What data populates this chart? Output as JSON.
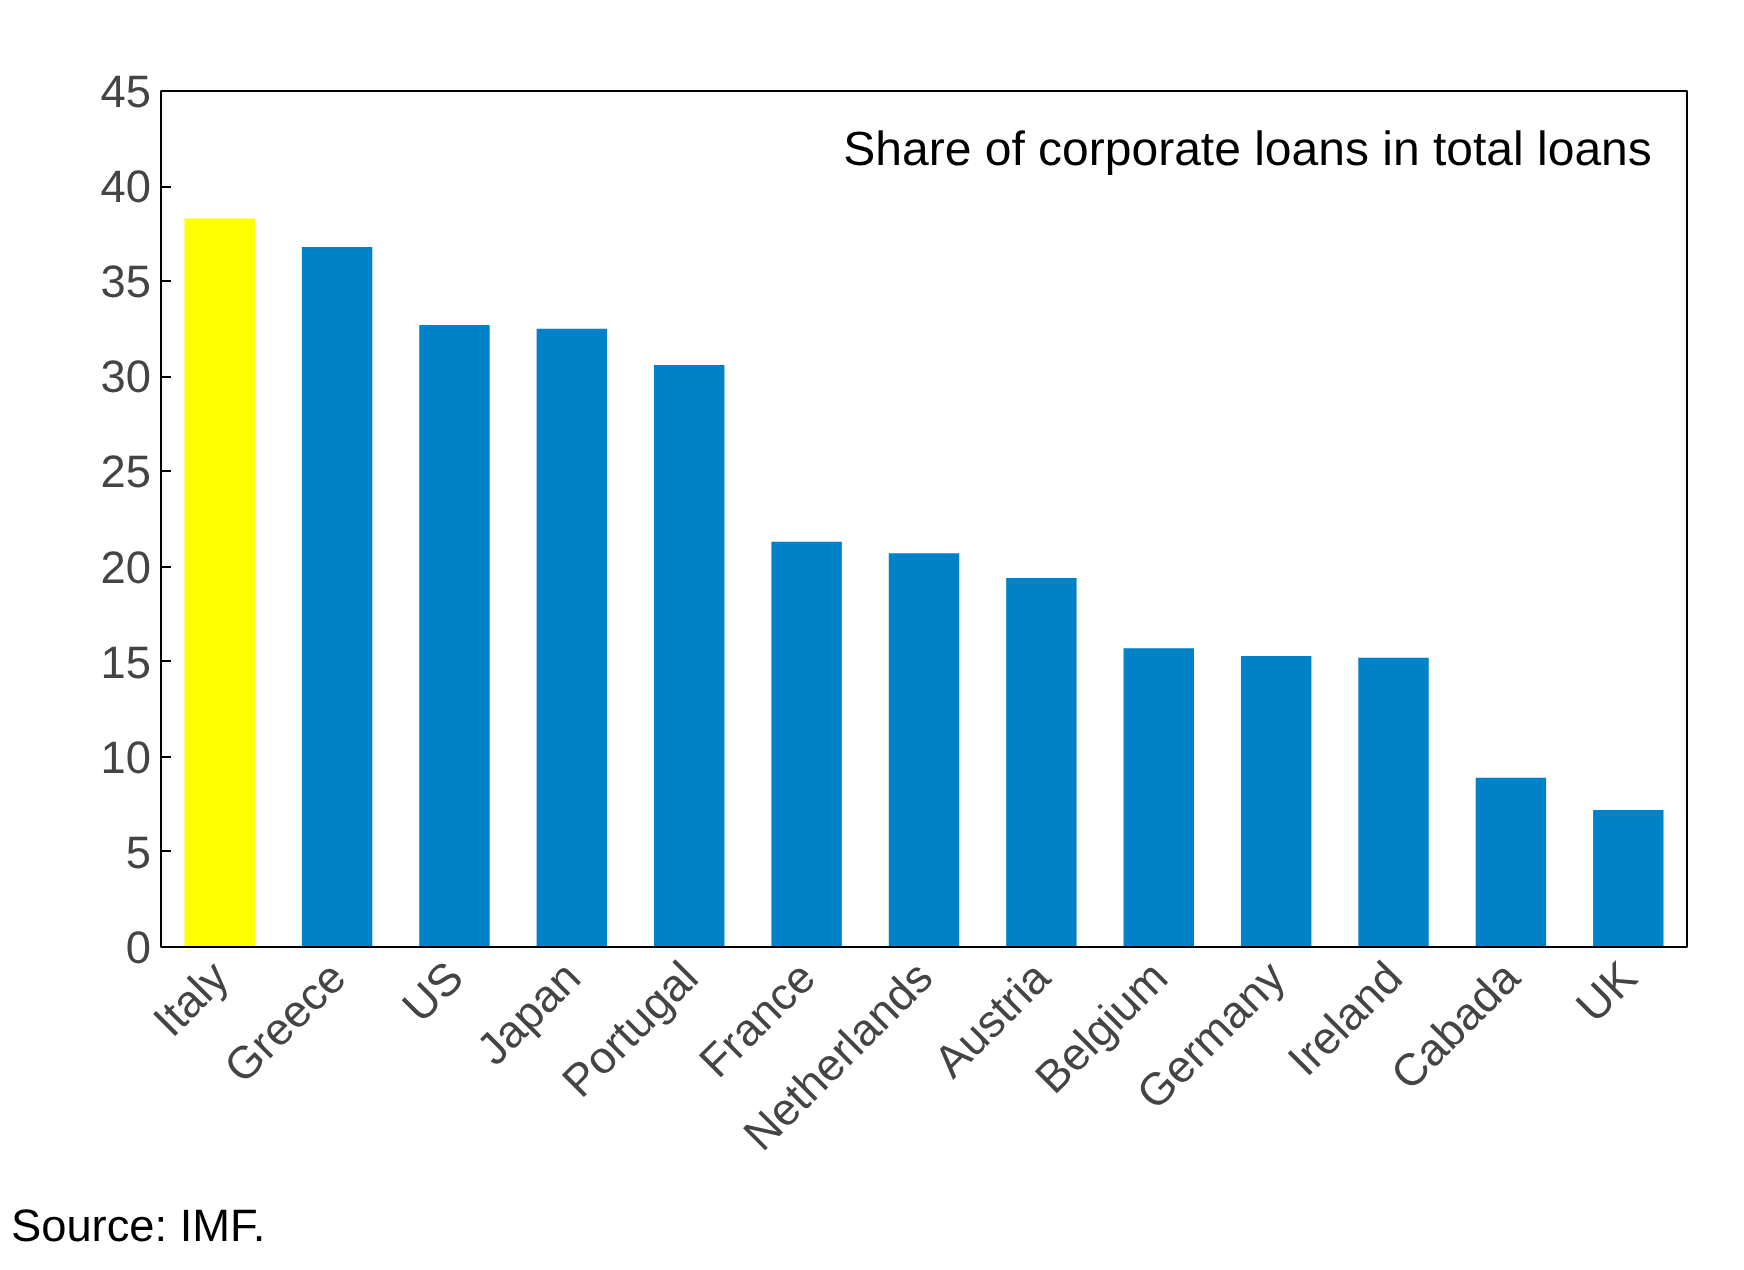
{
  "chart_data": {
    "type": "bar",
    "title": "Share of corporate loans in total loans",
    "categories": [
      "Italy",
      "Greece",
      "US",
      "Japan",
      "Portugal",
      "France",
      "Netherlands",
      "Austria",
      "Belgium",
      "Germany",
      "Ireland",
      "Cabada",
      "UK"
    ],
    "values": [
      38.3,
      36.8,
      32.7,
      32.5,
      30.6,
      21.3,
      20.7,
      19.4,
      15.7,
      15.3,
      15.2,
      8.9,
      7.2
    ],
    "colors": [
      "#ffff00",
      "#0082c8",
      "#0082c8",
      "#0082c8",
      "#0082c8",
      "#0082c8",
      "#0082c8",
      "#0082c8",
      "#0082c8",
      "#0082c8",
      "#0082c8",
      "#0082c8",
      "#0082c8"
    ],
    "ylim": [
      0,
      45
    ],
    "yticks": [
      0,
      5,
      10,
      15,
      20,
      25,
      30,
      35,
      40,
      45
    ],
    "grid": false,
    "annotations": [
      "Source: IMF."
    ]
  }
}
